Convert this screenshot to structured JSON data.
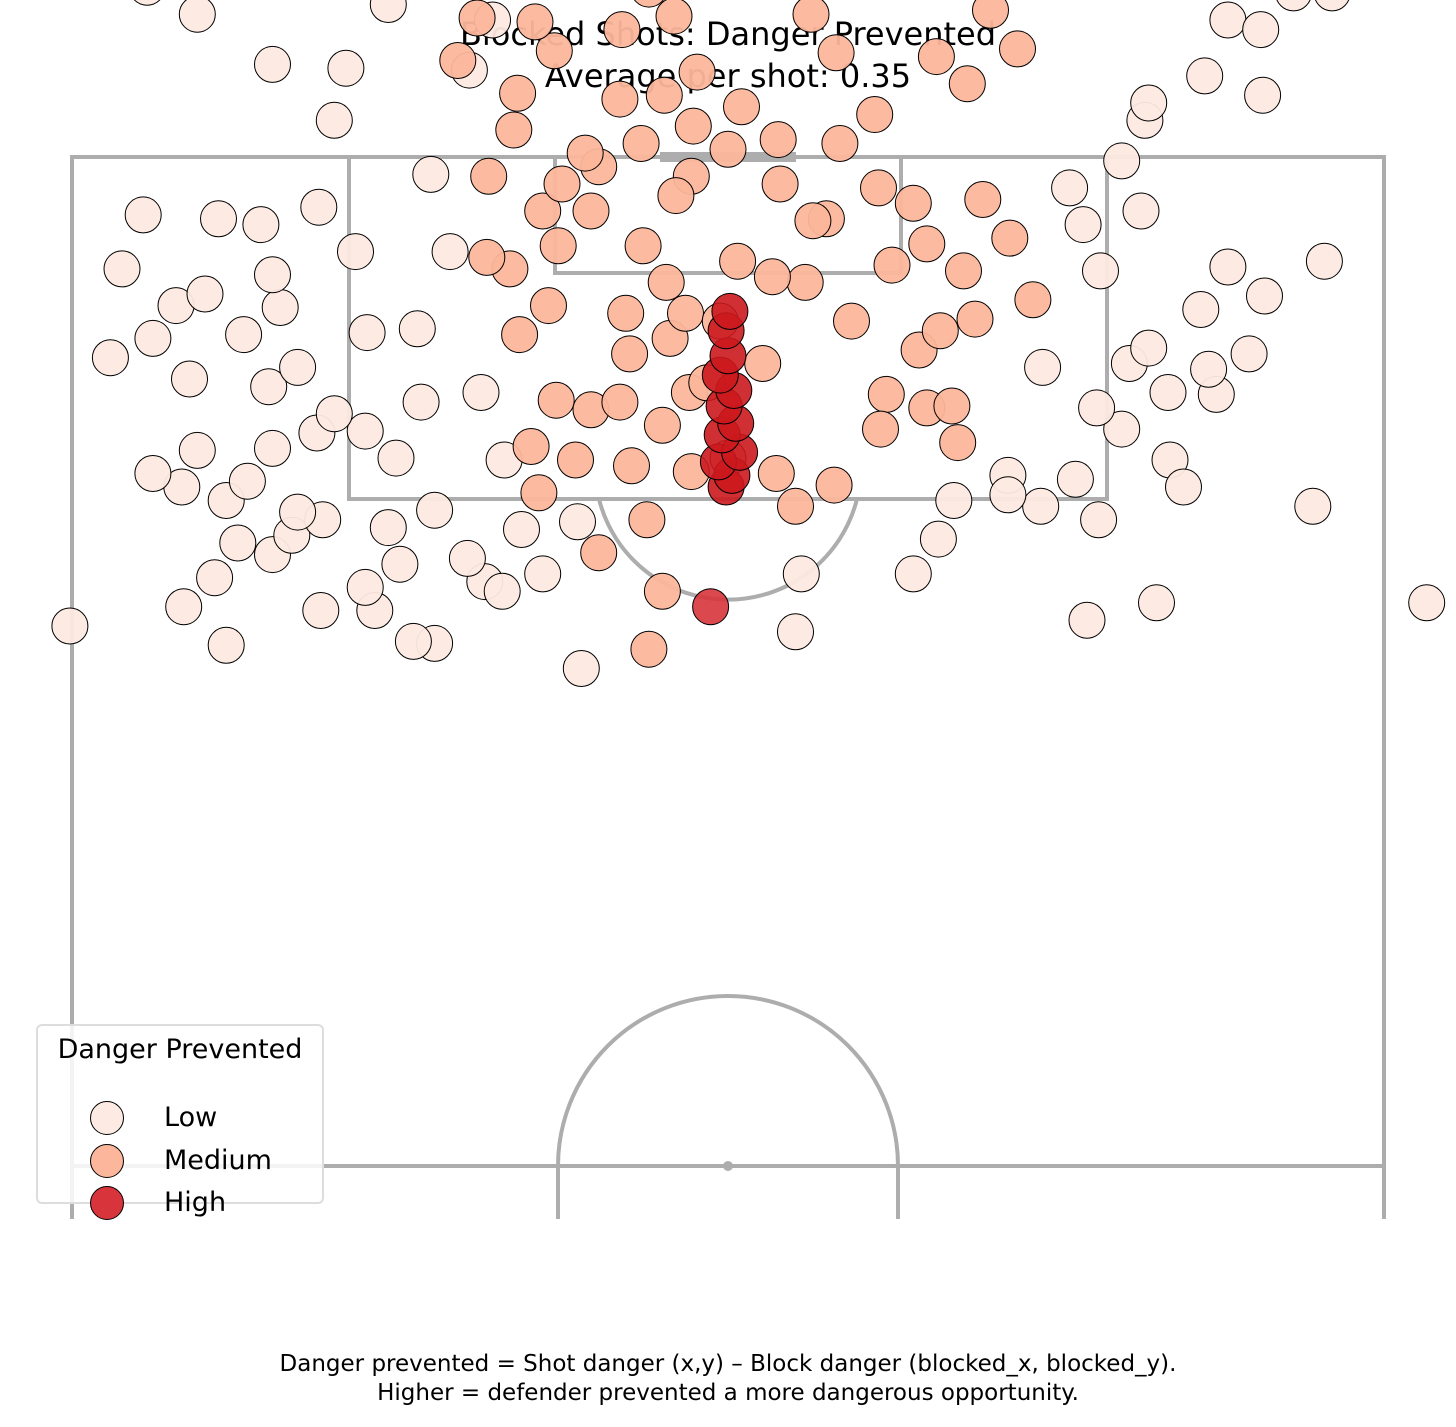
{
  "chart_data": {
    "type": "scatter",
    "title": "Blocked Shots: Danger Prevented",
    "subtitle": "Average per shot: 0.35",
    "xlabel": "",
    "ylabel": "",
    "axes_visible": false,
    "grid": false,
    "legend": {
      "title": "Danger Prevented",
      "placement": "lower-left",
      "entries": [
        {
          "label": "Low",
          "color": "#fdeae2"
        },
        {
          "label": "Medium",
          "color": "#fcb69b"
        },
        {
          "label": "High",
          "color": "#d7343b"
        }
      ]
    },
    "colors": {
      "low": "#fdeae2",
      "medium": "#fcb69b",
      "high": "#d7343b",
      "high_dense": "#cb181d",
      "pitch_lines": "#adadad",
      "marker_edge": "#000000"
    },
    "series": [
      {
        "name": "Low",
        "points": [
          [
            -7.6,
            26.5
          ],
          [
            3.5,
            24.6
          ],
          [
            -15.2,
            25.2
          ],
          [
            -16.3,
            25.1
          ],
          [
            -26.0,
            25.3
          ],
          [
            -34.1,
            24.3
          ],
          [
            -28.2,
            23.3
          ],
          [
            -18.3,
            23.5
          ],
          [
            -21.1,
            23.5
          ],
          [
            -18.8,
            22.3
          ],
          [
            -26.6,
            21.8
          ],
          [
            -12.6,
            22.0
          ],
          [
            3.8,
            21.6
          ],
          [
            -17.0,
            21.1
          ],
          [
            -13.5,
            20.8
          ],
          [
            -23.6,
            20.6
          ],
          [
            -25.4,
            20.0
          ],
          [
            -22.6,
            19.6
          ],
          [
            -21.0,
            18.8
          ],
          [
            -17.6,
            19.2
          ],
          [
            -22.3,
            18.4
          ],
          [
            -26.0,
            17.8
          ],
          [
            -28.3,
            17.1
          ],
          [
            -24.9,
            16.8
          ],
          [
            -29.8,
            16.4
          ],
          [
            -27.5,
            15.2
          ],
          [
            -23.6,
            15.1
          ],
          [
            -21.3,
            14.3
          ],
          [
            -18.8,
            14.2
          ],
          [
            -20.4,
            13.3
          ],
          [
            -17.2,
            15.6
          ],
          [
            -15.9,
            12.7
          ],
          [
            -23.8,
            11.9
          ],
          [
            -22.3,
            10.9
          ],
          [
            -27.9,
            11.5
          ],
          [
            -32.0,
            10.4
          ],
          [
            -29.8,
            9.4
          ],
          [
            -28.6,
            7.7
          ],
          [
            -25.1,
            9.2
          ],
          [
            -23.2,
            7.8
          ],
          [
            -18.7,
            9.1
          ],
          [
            -24.2,
            3.5
          ],
          [
            -30.3,
            3.0
          ],
          [
            -27.1,
            7.1
          ],
          [
            -31.4,
            5.8
          ],
          [
            -21.2,
            2.6
          ],
          [
            -26.4,
            3.2
          ],
          [
            -19.3,
            4.9
          ],
          [
            -23.6,
            6.1
          ],
          [
            -20.4,
            -1.9
          ],
          [
            -19.8,
            -4.6
          ],
          [
            -17.6,
            -7.9
          ],
          [
            -23.6,
            -4.8
          ],
          [
            -27.5,
            -7.4
          ],
          [
            -30.1,
            -8.8
          ],
          [
            -26.9,
            -10.9
          ],
          [
            -24.6,
            -12.5
          ],
          [
            -29.9,
            -13.0
          ],
          [
            -21.3,
            -12.4
          ],
          [
            -26.2,
            -15.8
          ],
          [
            -20.9,
            -16.1
          ],
          [
            -17.4,
            -16.5
          ],
          [
            -22.5,
            -17.3
          ],
          [
            -19.6,
            -19.2
          ],
          [
            -15.1,
            -19.3
          ],
          [
            -22.3,
            -20.4
          ],
          [
            -23.7,
            -21.4
          ],
          [
            -15.1,
            -22.2
          ],
          [
            -16.0,
            -23.1
          ],
          [
            -9.4,
            -22.3
          ],
          [
            -11.4,
            -19.7
          ],
          [
            -9.7,
            -15.0
          ],
          [
            -9.3,
            -12.2
          ],
          [
            -10.5,
            -9.8
          ],
          [
            -15.6,
            -14.1
          ],
          [
            -13.4,
            -11.2
          ],
          [
            -12.2,
            -7.1
          ],
          [
            -13.4,
            -4.5
          ],
          [
            -15.4,
            0.9
          ],
          [
            -14.4,
            4.9
          ],
          [
            -16.1,
            8.9
          ],
          [
            -12.8,
            12.2
          ],
          [
            -10.7,
            19.3
          ],
          [
            -11.7,
            22.5
          ],
          [
            -15.2,
            18.3
          ],
          [
            -11.6,
            15.7
          ],
          [
            -7.8,
            18.9
          ],
          [
            -9.6,
            21.6
          ],
          [
            9.6,
            21.6
          ],
          [
            10.9,
            19.8
          ],
          [
            11.7,
            17.8
          ],
          [
            14.5,
            16.5
          ],
          [
            16.2,
            18.1
          ],
          [
            19.2,
            18.8
          ],
          [
            18.0,
            16.7
          ],
          [
            20.4,
            14.1
          ],
          [
            22.9,
            15.7
          ],
          [
            23.6,
            17.1
          ],
          [
            19.1,
            13.0
          ],
          [
            25.3,
            12.3
          ],
          [
            20.8,
            10.7
          ],
          [
            24.9,
            11.0
          ],
          [
            27.0,
            10.2
          ],
          [
            27.8,
            7.2
          ],
          [
            25.9,
            5.7
          ],
          [
            24.5,
            7.9
          ],
          [
            21.8,
            9.9
          ],
          [
            22.8,
            12.2
          ],
          [
            16.3,
            10.9
          ],
          [
            19.3,
            5.9
          ],
          [
            18.4,
            3.5
          ],
          [
            21.4,
            2.8
          ],
          [
            17.7,
            1.6
          ],
          [
            20.4,
            0.2
          ],
          [
            21.6,
            -1.9
          ],
          [
            24.7,
            -4.2
          ],
          [
            21.8,
            -2.8
          ],
          [
            25.9,
            -7.1
          ],
          [
            31.3,
            -8.5
          ],
          [
            29.3,
            -8.5
          ],
          [
            27.6,
            -6.6
          ],
          [
            27.1,
            -11.0
          ],
          [
            26.5,
            -13.8
          ],
          [
            28.8,
            -13.8
          ],
          [
            31.3,
            -14.3
          ],
          [
            34.2,
            -14.2
          ],
          [
            29.9,
            -16.4
          ],
          [
            19.4,
            -14.8
          ],
          [
            18.0,
            -17.4
          ],
          [
            19.8,
            -20.1
          ],
          [
            16.8,
            -16.2
          ],
          [
            22.7,
            -10.6
          ],
          [
            25.9,
            -9.1
          ],
          [
            21.3,
            -12.0
          ],
          [
            36.2,
            -15.2
          ],
          [
            27.7,
            -3.2
          ],
          [
            40.1,
            -15.3
          ],
          [
            30.9,
            5.4
          ],
          [
            14.5,
            17.5
          ],
          [
            30.3,
            18.1
          ],
          [
            18.6,
            24.0
          ],
          [
            22.2,
            23.1
          ],
          [
            36.2,
            23.1
          ]
        ]
      },
      {
        "name": "Medium",
        "points": [
          [
            -4.1,
            25.5
          ],
          [
            -3.4,
            22.5
          ],
          [
            -6.7,
            20.5
          ],
          [
            -4.2,
            18.8
          ],
          [
            -1.9,
            16.3
          ],
          [
            0.0,
            15.6
          ],
          [
            2.5,
            16.4
          ],
          [
            3.5,
            18.1
          ],
          [
            5.5,
            17.0
          ],
          [
            -5.0,
            16.0
          ],
          [
            -7.9,
            15.7
          ],
          [
            -9.8,
            17.4
          ],
          [
            -10.2,
            15.0
          ],
          [
            -8.9,
            12.6
          ],
          [
            -7.1,
            13.1
          ],
          [
            -5.6,
            12.7
          ],
          [
            -3.4,
            13.9
          ],
          [
            -2.0,
            12.2
          ],
          [
            -5.1,
            10.2
          ],
          [
            -3.0,
            9.4
          ],
          [
            -5.3,
            8.1
          ],
          [
            -9.3,
            7.7
          ],
          [
            -10.8,
            9.2
          ],
          [
            -11.3,
            5.8
          ],
          [
            -8.8,
            4.6
          ],
          [
            -9.6,
            2.8
          ],
          [
            -7.1,
            2.8
          ],
          [
            -4.4,
            4.6
          ],
          [
            -3.2,
            6.5
          ],
          [
            -2.2,
            8.1
          ],
          [
            -1.9,
            1.0
          ],
          [
            -2.7,
            2.0
          ],
          [
            -4.5,
            -0.7
          ],
          [
            -6.7,
            0.5
          ],
          [
            -8.6,
            1.4
          ],
          [
            -5.6,
            -3.0
          ],
          [
            -3.3,
            -3.2
          ],
          [
            -1.8,
            -1.6
          ],
          [
            0.0,
            -0.4
          ],
          [
            0.7,
            -2.6
          ],
          [
            -1.6,
            -4.4
          ],
          [
            -9.0,
            -5.5
          ],
          [
            -10.0,
            -7.0
          ],
          [
            -13.0,
            -7.2
          ],
          [
            -14.0,
            -5.0
          ],
          [
            -12.2,
            -9.8
          ],
          [
            -11.6,
            -12.7
          ],
          [
            -14.4,
            -12.1
          ],
          [
            -13.6,
            -14.2
          ],
          [
            -10.6,
            -14.6
          ],
          [
            -8.1,
            -14.2
          ],
          [
            -6.9,
            -12.3
          ],
          [
            -5.2,
            -14.8
          ],
          [
            -2.7,
            -13.1
          ],
          [
            -1.0,
            -15.5
          ],
          [
            0.6,
            -14.4
          ],
          [
            1.9,
            -12.3
          ],
          [
            2.2,
            -9.4
          ],
          [
            5.1,
            -9.2
          ],
          [
            7.8,
            -10.9
          ],
          [
            6.2,
            -13.2
          ],
          [
            3.4,
            -12.2
          ],
          [
            8.9,
            -15.3
          ],
          [
            8.1,
            -17.9
          ],
          [
            6.8,
            -20.6
          ],
          [
            9.5,
            -17.0
          ],
          [
            3.1,
            -19.3
          ],
          [
            1.0,
            -21.2
          ],
          [
            0.2,
            -19.2
          ],
          [
            -3.0,
            -19.2
          ],
          [
            -3.6,
            -21.4
          ],
          [
            -2.6,
            -23.0
          ],
          [
            -3.1,
            -24.6
          ],
          [
            -4.1,
            -26.7
          ],
          [
            -7.7,
            -20.2
          ],
          [
            -8.8,
            -19.9
          ],
          [
            -9.9,
            -20.8
          ],
          [
            -13.8,
            -24.2
          ],
          [
            -15.5,
            -19.9
          ],
          [
            -14.6,
            -18.0
          ],
          [
            -6.1,
            -16.2
          ],
          [
            -10.9,
            -3.3
          ],
          [
            -4.1,
            -8.7
          ],
          [
            -2.6,
            -10.2
          ],
          [
            4.3,
            -7.4
          ],
          [
            5.6,
            -5.4
          ],
          [
            7.6,
            -2.2
          ],
          [
            7.8,
            1.6
          ],
          [
            5.1,
            3.2
          ],
          [
            4.0,
            6.5
          ],
          [
            6.4,
            8.5
          ],
          [
            9.9,
            10.0
          ],
          [
            8.2,
            12.3
          ],
          [
            10.3,
            13.0
          ],
          [
            11.6,
            12.9
          ],
          [
            11.9,
            14.8
          ],
          [
            7.9,
            14.1
          ],
          [
            11.0,
            9.0
          ],
          [
            10.3,
            4.5
          ],
          [
            9.6,
            2.4
          ],
          [
            8.5,
            5.6
          ],
          [
            2.7,
            1.4
          ],
          [
            2.3,
            6.2
          ],
          [
            0.5,
            5.4
          ],
          [
            -1.1,
            11.7
          ],
          [
            -0.4,
            8.5
          ],
          [
            4.4,
            3.3
          ],
          [
            5.8,
            -0.7
          ],
          [
            10.8,
            -5.2
          ],
          [
            13.6,
            -7.6
          ],
          [
            13.9,
            -11.2
          ],
          [
            15.0,
            -5.6
          ],
          [
            12.4,
            -3.8
          ],
          [
            13.2,
            2.2
          ],
          [
            12.2,
            5.9
          ],
          [
            14.6,
            4.2
          ],
          [
            15.8,
            7.4
          ],
          [
            12.8,
            8.4
          ],
          [
            -12.5,
            5.2
          ],
          [
            -12.4,
            1.0
          ],
          [
            -11.1,
            -1.4
          ],
          [
            -7.4,
            -0.2
          ],
          [
            -2.8,
            -7.3
          ],
          [
            -5.5,
            -6.6
          ],
          [
            2.6,
            -0.9
          ],
          [
            1.8,
            10.7
          ],
          [
            -4.5,
            -9.6
          ],
          [
            4.1,
            -15.3
          ],
          [
            -8.8,
            -10.2
          ]
        ]
      },
      {
        "name": "High",
        "points": [
          [
            -0.9,
            23.3
          ],
          [
            -0.1,
            17.1
          ],
          [
            0.2,
            16.5
          ],
          [
            -0.5,
            15.8
          ],
          [
            0.6,
            15.3
          ],
          [
            -0.3,
            14.4
          ],
          [
            0.4,
            13.8
          ],
          [
            -0.2,
            12.9
          ],
          [
            0.3,
            12.1
          ],
          [
            -0.4,
            11.3
          ],
          [
            0.0,
            10.3
          ],
          [
            -0.1,
            9.0
          ],
          [
            0.1,
            8.0
          ]
        ]
      }
    ]
  },
  "footnote": {
    "line1": "Danger prevented = Shot danger (x,y) – Block danger (blocked_x, blocked_y).",
    "line2": "Higher = defender prevented a more dangerous opportunity."
  }
}
